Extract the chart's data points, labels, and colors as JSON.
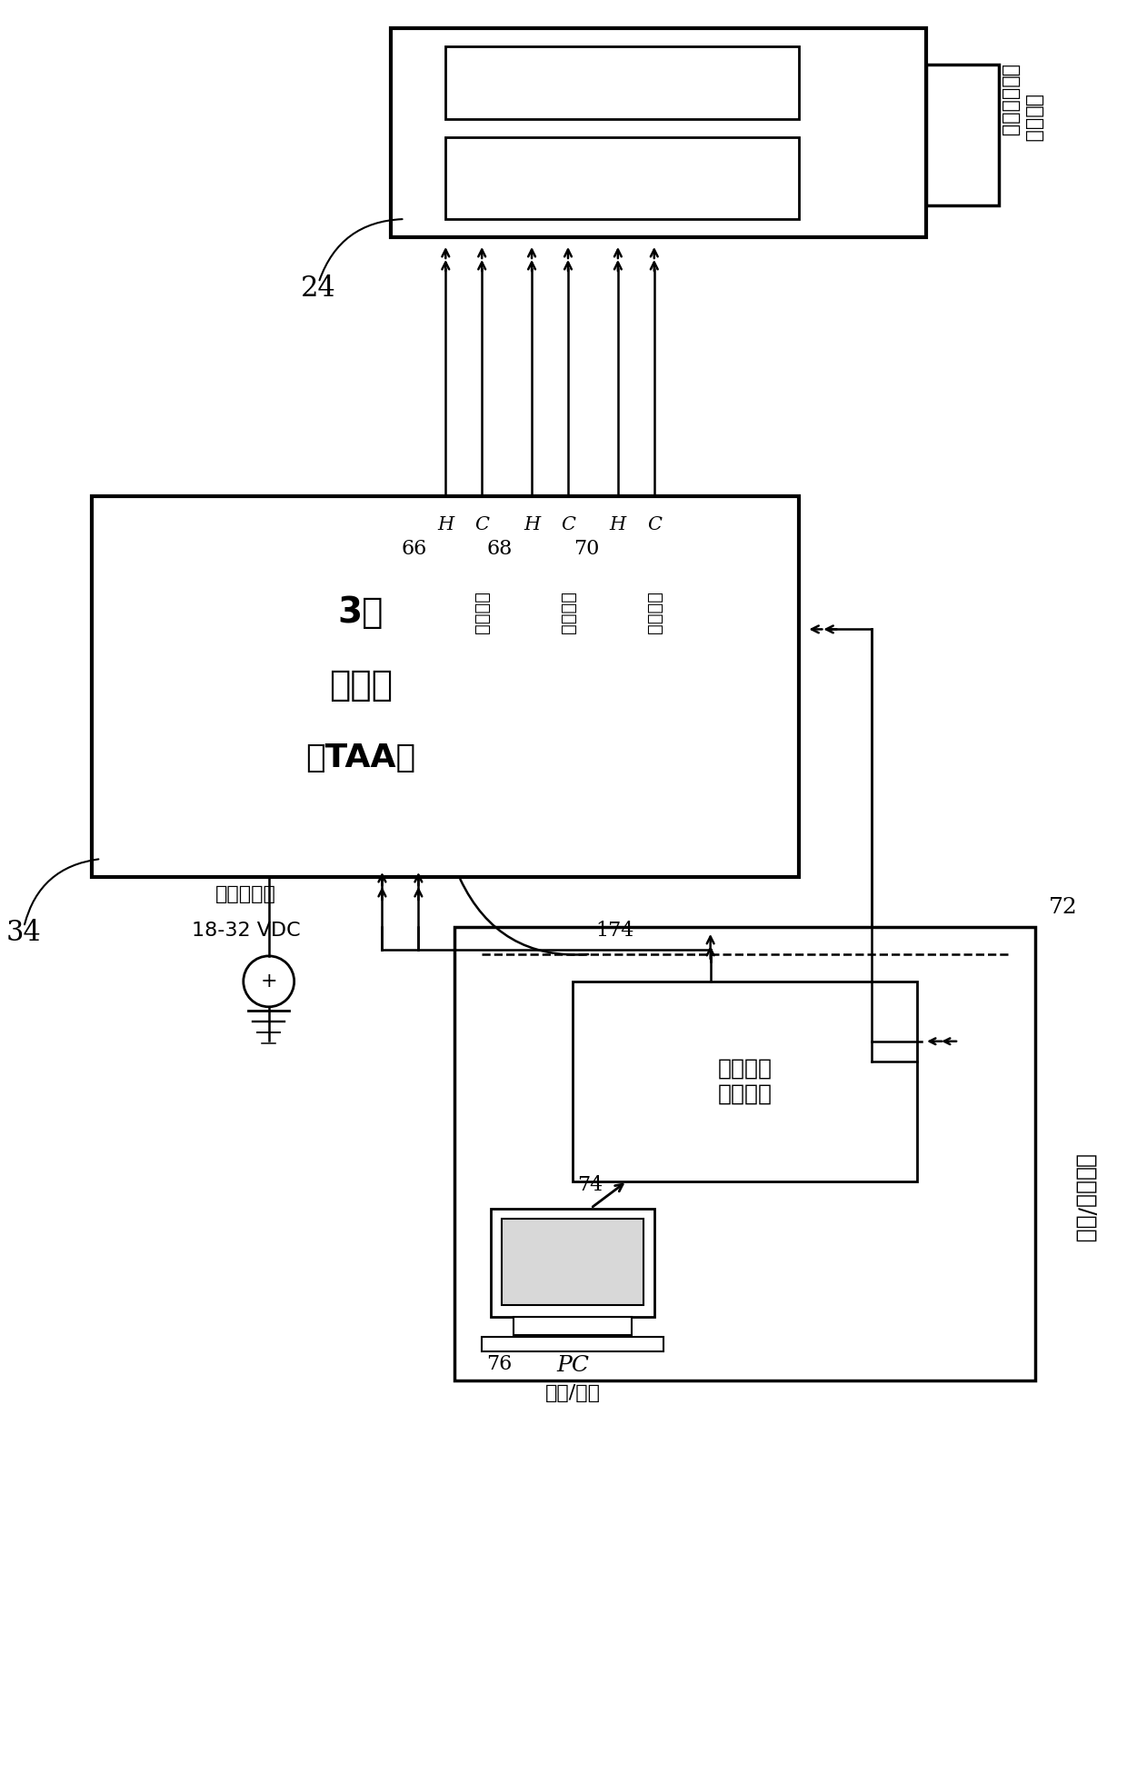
{
  "bg_color": "#ffffff",
  "line_color": "#000000",
  "fig_width": 12.4,
  "fig_height": 19.63,
  "label_24": "24",
  "label_34": "34",
  "label_66": "66",
  "label_68": "68",
  "label_70": "70",
  "label_72": "72",
  "label_74": "74",
  "label_76": "76",
  "label_174": "174",
  "text_vertical_output": "垂直输出",
  "text_lateral_output": "横向输出",
  "text_longitudinal_output": "纵向输出",
  "text_H": "H",
  "text_C": "C",
  "text_3axis": "3轴",
  "text_accelerometer": "加速计",
  "text_TAA": "（TAA）",
  "text_digital_flight": "数字飞行数据",
  "text_acquisition_unit": "采集单元",
  "text_calibration_fixture": "校准测试\n固定装置",
  "text_PC": "PC",
  "text_diagnosis": "诊断/校准",
  "text_factory_test": "工厂测试/校准",
  "text_avionics_power": "飞行器电源",
  "text_vdc": "18-32 VDC"
}
